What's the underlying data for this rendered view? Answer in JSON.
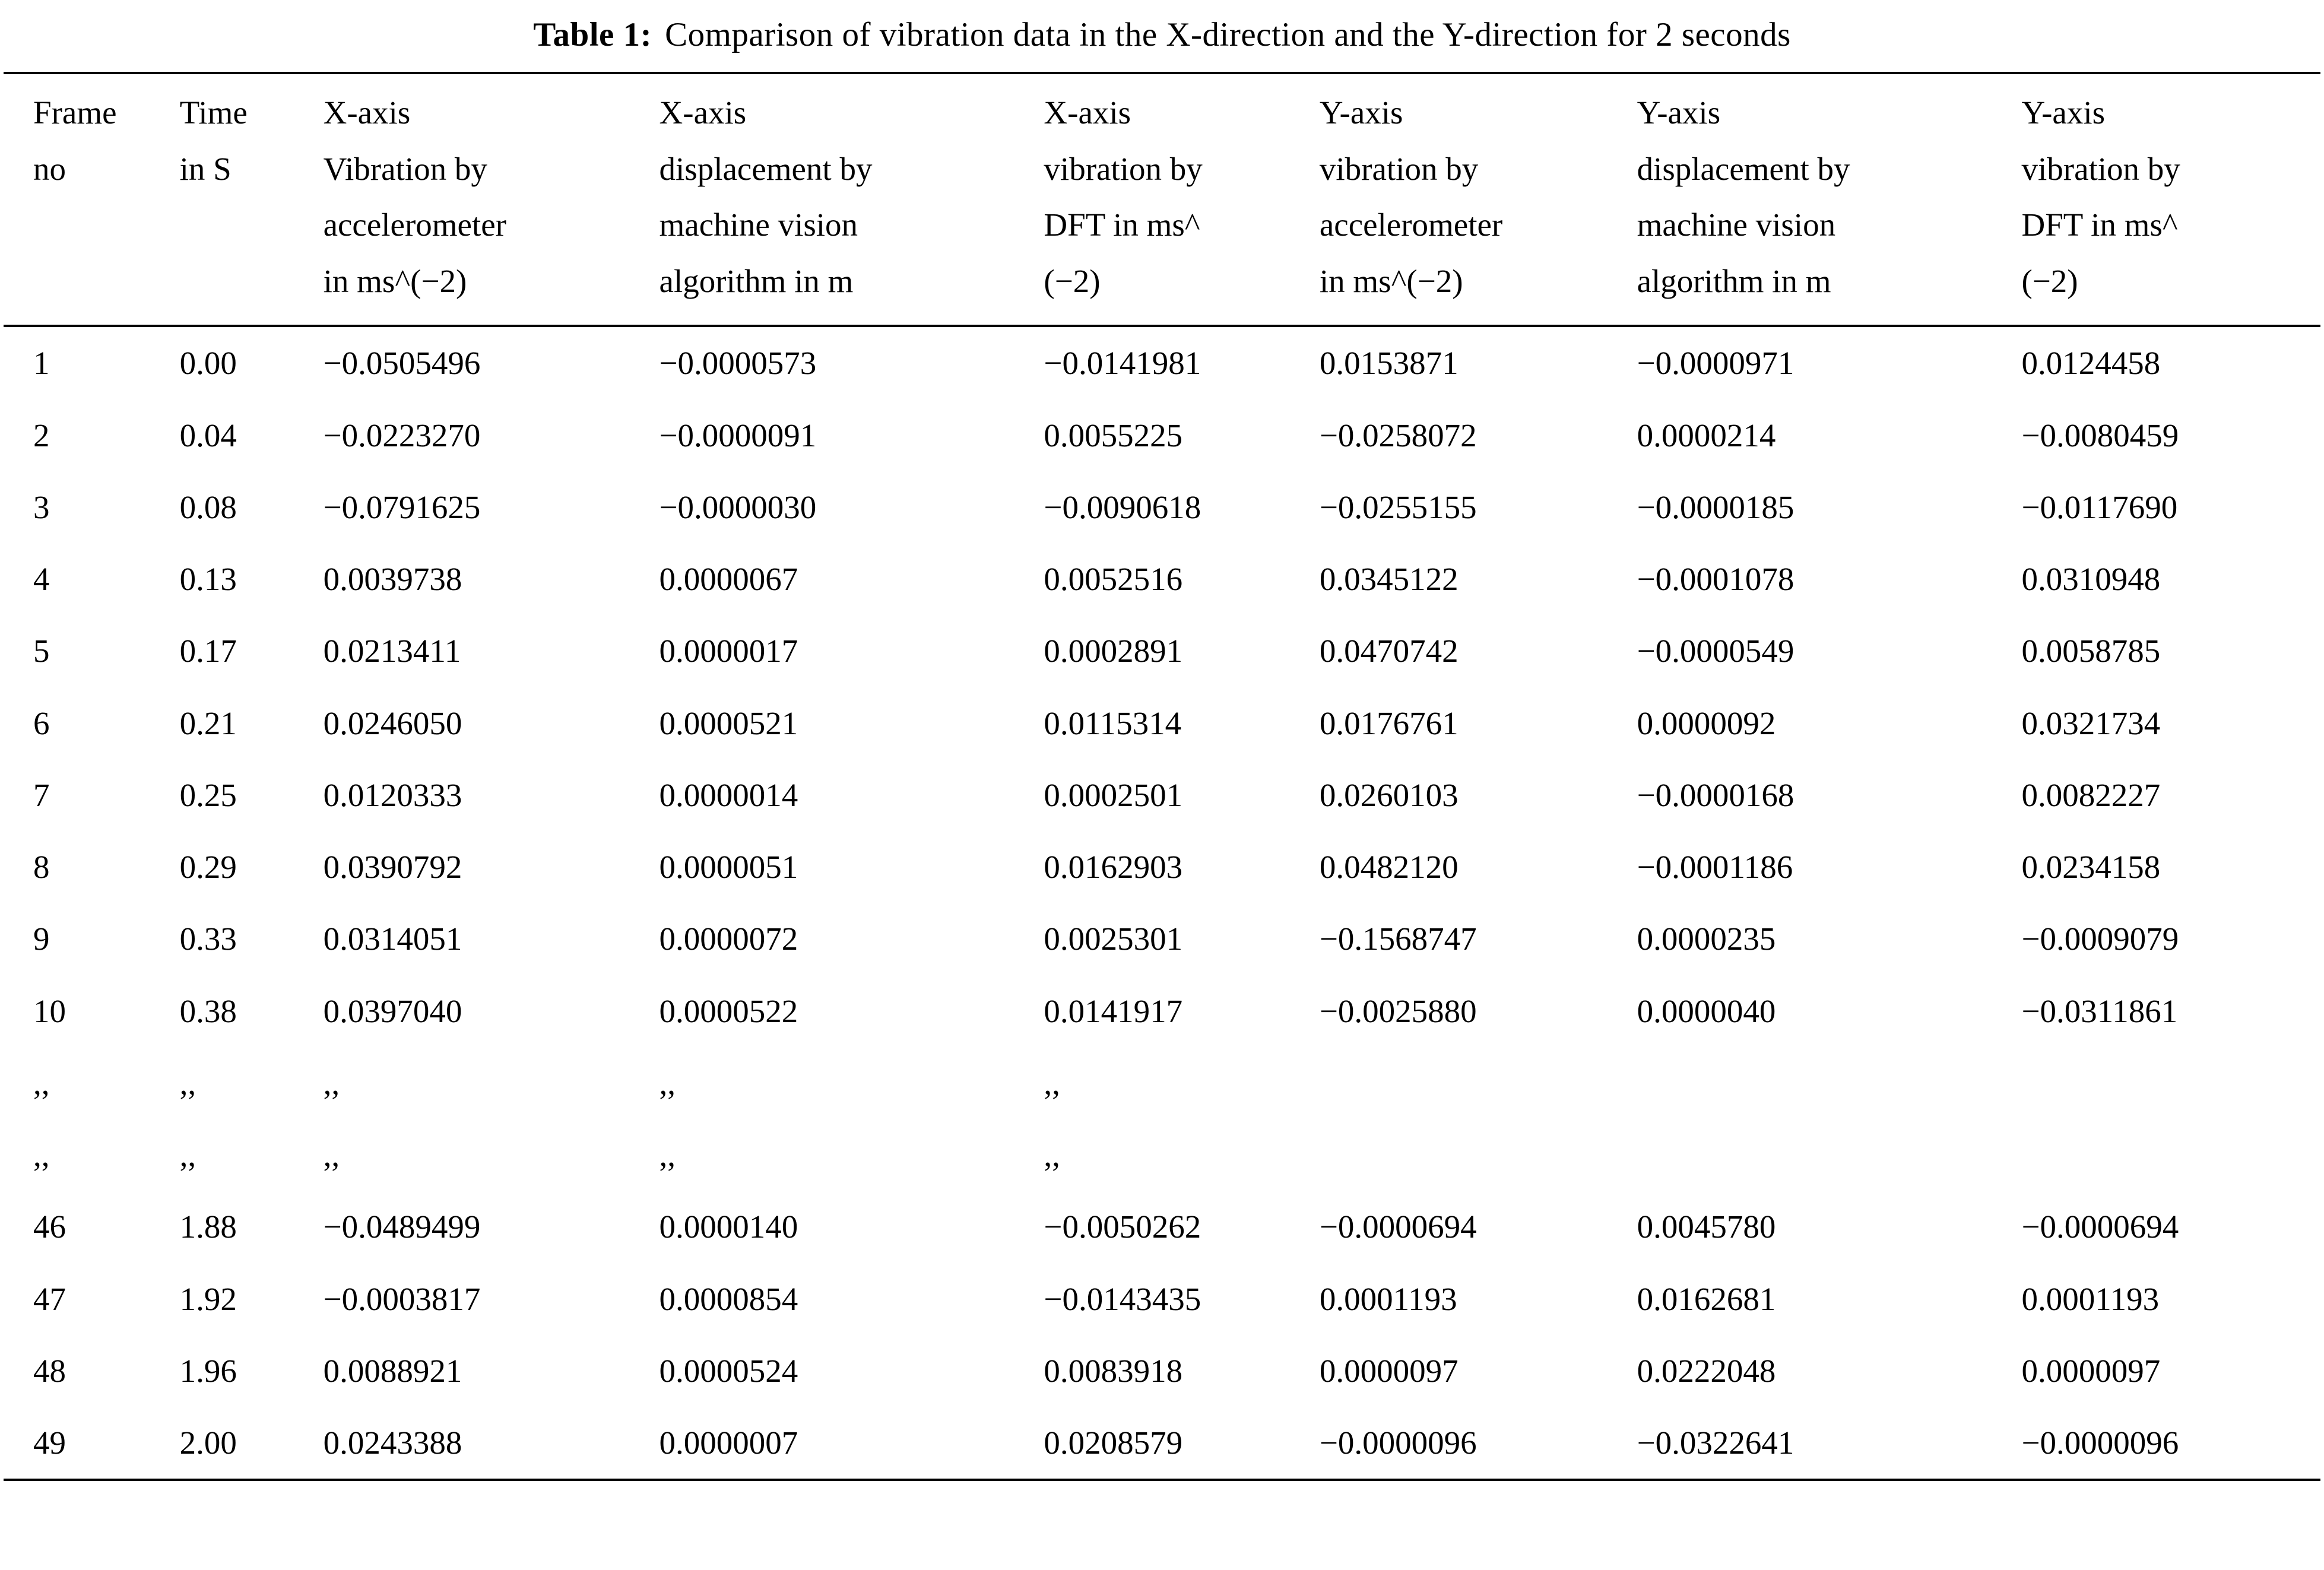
{
  "caption": {
    "label": "Table 1:",
    "text": "Comparison of vibration data in the X-direction and the Y-direction for 2 seconds"
  },
  "table": {
    "headers": [
      "Frame\nno",
      "Time\nin S",
      "X-axis\nVibration by\naccelerometer\nin ms^(−2)",
      "X-axis\ndisplacement by\nmachine vision\nalgorithm in m",
      "X-axis\nvibration by\nDFT in ms^\n(−2)",
      "Y-axis\nvibration by\naccelerometer\nin ms^(−2)",
      "Y-axis\ndisplacement by\nmachine vision\nalgorithm in m",
      "Y-axis\nvibration by\nDFT in ms^\n(−2)"
    ],
    "rows": [
      [
        "1",
        "0.00",
        "−0.0505496",
        "−0.0000573",
        "−0.0141981",
        "0.0153871",
        "−0.0000971",
        "0.0124458"
      ],
      [
        "2",
        "0.04",
        "−0.0223270",
        "−0.0000091",
        "0.0055225",
        "−0.0258072",
        "0.0000214",
        "−0.0080459"
      ],
      [
        "3",
        "0.08",
        "−0.0791625",
        "−0.0000030",
        "−0.0090618",
        "−0.0255155",
        "−0.0000185",
        "−0.0117690"
      ],
      [
        "4",
        "0.13",
        "0.0039738",
        "0.0000067",
        "0.0052516",
        "0.0345122",
        "−0.0001078",
        "0.0310948"
      ],
      [
        "5",
        "0.17",
        "0.0213411",
        "0.0000017",
        "0.0002891",
        "0.0470742",
        "−0.0000549",
        "0.0058785"
      ],
      [
        "6",
        "0.21",
        "0.0246050",
        "0.0000521",
        "0.0115314",
        "0.0176761",
        "0.0000092",
        "0.0321734"
      ],
      [
        "7",
        "0.25",
        "0.0120333",
        "0.0000014",
        "0.0002501",
        "0.0260103",
        "−0.0000168",
        "0.0082227"
      ],
      [
        "8",
        "0.29",
        "0.0390792",
        "0.0000051",
        "0.0162903",
        "0.0482120",
        "−0.0001186",
        "0.0234158"
      ],
      [
        "9",
        "0.33",
        "0.0314051",
        "0.0000072",
        "0.0025301",
        "−0.1568747",
        "0.0000235",
        "−0.0009079"
      ],
      [
        "10",
        "0.38",
        "0.0397040",
        "0.0000522",
        "0.0141917",
        "−0.0025880",
        "0.0000040",
        "−0.0311861"
      ],
      [
        ",,",
        ",,",
        ",,",
        ",,",
        ",,",
        "",
        "",
        ""
      ],
      [
        ",,",
        ",,",
        ",,",
        ",,",
        ",,",
        "",
        "",
        ""
      ],
      [
        "46",
        "1.88",
        "−0.0489499",
        "0.0000140",
        "−0.0050262",
        "−0.0000694",
        "0.0045780",
        "−0.0000694"
      ],
      [
        "47",
        "1.92",
        "−0.0003817",
        "0.0000854",
        "−0.0143435",
        "0.0001193",
        "0.0162681",
        "0.0001193"
      ],
      [
        "48",
        "1.96",
        "0.0088921",
        "0.0000524",
        "0.0083918",
        "0.0000097",
        "0.0222048",
        "0.0000097"
      ],
      [
        "49",
        "2.00",
        "0.0243388",
        "0.0000007",
        "0.0208579",
        "−0.0000096",
        "−0.0322641",
        "−0.0000096"
      ]
    ]
  }
}
